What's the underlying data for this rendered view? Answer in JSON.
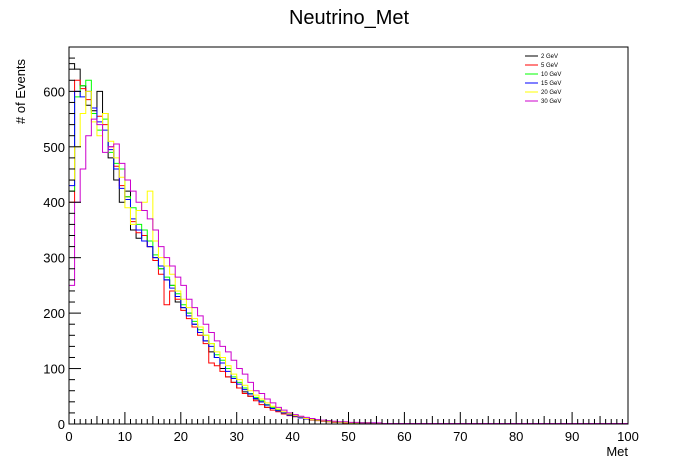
{
  "chart_data": {
    "type": "line",
    "title": "Neutrino_Met",
    "xlabel": "Met",
    "ylabel": "# of Events",
    "xlim": [
      0,
      100
    ],
    "ylim": [
      0,
      680
    ],
    "xticks": [
      "0",
      "10",
      "20",
      "30",
      "40",
      "50",
      "60",
      "70",
      "80",
      "90",
      "100"
    ],
    "yticks": [
      "0",
      "100",
      "200",
      "300",
      "400",
      "500",
      "600"
    ],
    "bin_width": 1,
    "grid": false,
    "legend_position": "top-right",
    "series": [
      {
        "name": "2 GeV",
        "color": "#000000",
        "values": [
          650,
          640,
          610,
          575,
          565,
          600,
          560,
          480,
          440,
          400,
          420,
          350,
          335,
          340,
          320,
          300,
          280,
          260,
          250,
          220,
          210,
          200,
          180,
          165,
          150,
          130,
          120,
          100,
          85,
          75,
          65,
          58,
          50,
          45,
          40,
          30,
          28,
          24,
          18,
          16,
          14,
          12,
          9,
          8,
          7,
          6,
          5,
          4,
          3,
          3,
          2,
          2,
          2,
          2,
          1,
          1,
          1,
          1,
          1,
          1,
          1,
          1,
          0,
          1,
          0,
          0,
          0,
          0,
          1,
          0,
          0,
          0,
          0,
          0,
          0,
          0,
          0,
          0,
          0,
          0,
          0,
          0,
          0,
          0,
          0,
          0,
          0,
          0,
          0,
          0,
          0,
          0,
          0,
          0,
          0,
          0,
          0,
          0,
          0,
          0
        ]
      },
      {
        "name": "5 GeV",
        "color": "#ff0000",
        "values": [
          400,
          620,
          605,
          585,
          570,
          555,
          540,
          500,
          465,
          430,
          410,
          365,
          345,
          340,
          320,
          295,
          270,
          215,
          240,
          225,
          205,
          190,
          175,
          160,
          145,
          110,
          105,
          95,
          85,
          75,
          65,
          55,
          50,
          42,
          35,
          30,
          25,
          22,
          18,
          15,
          13,
          11,
          9,
          7,
          6,
          5,
          4,
          3,
          3,
          2,
          2,
          2,
          1,
          2,
          1,
          1,
          1,
          1,
          1,
          1,
          1,
          0,
          0,
          0,
          1,
          0,
          0,
          0,
          0,
          0,
          0,
          0,
          0,
          0,
          0,
          0,
          0,
          0,
          0,
          0,
          0,
          0,
          0,
          0,
          0,
          0,
          0,
          0,
          0,
          0,
          0,
          0,
          0,
          0,
          0,
          0,
          0,
          0,
          0,
          0
        ]
      },
      {
        "name": "10 GeV",
        "color": "#00ff00",
        "values": [
          420,
          590,
          610,
          620,
          560,
          530,
          550,
          490,
          470,
          460,
          410,
          390,
          360,
          350,
          330,
          305,
          280,
          265,
          250,
          235,
          215,
          200,
          185,
          170,
          160,
          145,
          125,
          115,
          100,
          85,
          75,
          65,
          55,
          48,
          42,
          35,
          30,
          25,
          20,
          17,
          15,
          12,
          10,
          8,
          7,
          6,
          5,
          4,
          3,
          3,
          2,
          2,
          2,
          2,
          1,
          1,
          1,
          1,
          1,
          1,
          1,
          1,
          0,
          0,
          0,
          0,
          0,
          0,
          0,
          0,
          0,
          0,
          0,
          0,
          0,
          0,
          0,
          0,
          0,
          0,
          0,
          0,
          0,
          0,
          0,
          0,
          0,
          0,
          0,
          0,
          0,
          0,
          0,
          0,
          0,
          0,
          0,
          0,
          0,
          0
        ]
      },
      {
        "name": "15 GeV",
        "color": "#0000ff",
        "values": [
          430,
          600,
          590,
          600,
          570,
          545,
          530,
          495,
          460,
          425,
          405,
          370,
          350,
          330,
          320,
          300,
          285,
          260,
          245,
          230,
          210,
          195,
          180,
          165,
          150,
          140,
          120,
          110,
          95,
          82,
          72,
          62,
          54,
          46,
          40,
          34,
          28,
          24,
          20,
          16,
          14,
          11,
          9,
          8,
          7,
          6,
          5,
          4,
          3,
          3,
          2,
          2,
          2,
          1,
          2,
          1,
          1,
          1,
          1,
          1,
          1,
          0,
          0,
          0,
          0,
          0,
          1,
          0,
          0,
          0,
          1,
          0,
          0,
          0,
          0,
          0,
          0,
          0,
          0,
          0,
          0,
          0,
          0,
          0,
          0,
          0,
          0,
          1,
          0,
          0,
          0,
          0,
          0,
          0,
          0,
          0,
          0,
          0,
          0,
          0
        ]
      },
      {
        "name": "20 GeV",
        "color": "#ffff00",
        "values": [
          440,
          500,
          560,
          600,
          545,
          520,
          560,
          510,
          480,
          445,
          390,
          360,
          385,
          400,
          420,
          330,
          300,
          285,
          270,
          240,
          225,
          210,
          190,
          175,
          160,
          145,
          130,
          120,
          105,
          90,
          80,
          70,
          60,
          52,
          45,
          38,
          32,
          27,
          22,
          18,
          15,
          13,
          10,
          8,
          7,
          6,
          5,
          4,
          3,
          3,
          2,
          2,
          2,
          2,
          1,
          1,
          1,
          1,
          1,
          1,
          1,
          0,
          0,
          0,
          0,
          0,
          0,
          0,
          0,
          0,
          0,
          0,
          0,
          0,
          0,
          0,
          0,
          0,
          0,
          0,
          0,
          0,
          0,
          0,
          0,
          0,
          0,
          0,
          0,
          0,
          0,
          0,
          0,
          0,
          0,
          0,
          0,
          0,
          0,
          0
        ]
      },
      {
        "name": "30 GeV",
        "color": "#cc00cc",
        "values": [
          250,
          400,
          460,
          520,
          550,
          540,
          490,
          500,
          505,
          470,
          440,
          420,
          400,
          385,
          370,
          350,
          320,
          300,
          285,
          265,
          250,
          225,
          210,
          195,
          180,
          165,
          150,
          140,
          130,
          115,
          100,
          90,
          75,
          60,
          55,
          45,
          38,
          30,
          25,
          20,
          17,
          14,
          12,
          10,
          8,
          7,
          6,
          5,
          4,
          4,
          3,
          3,
          2,
          2,
          2,
          2,
          1,
          1,
          1,
          1,
          1,
          1,
          1,
          1,
          1,
          1,
          1,
          1,
          1,
          1,
          1,
          1,
          1,
          1,
          1,
          1,
          1,
          1,
          1,
          1,
          1,
          1,
          1,
          1,
          1,
          1,
          1,
          1,
          1,
          1,
          1,
          1,
          1,
          1,
          1,
          1,
          1,
          1,
          1,
          1
        ]
      }
    ]
  }
}
